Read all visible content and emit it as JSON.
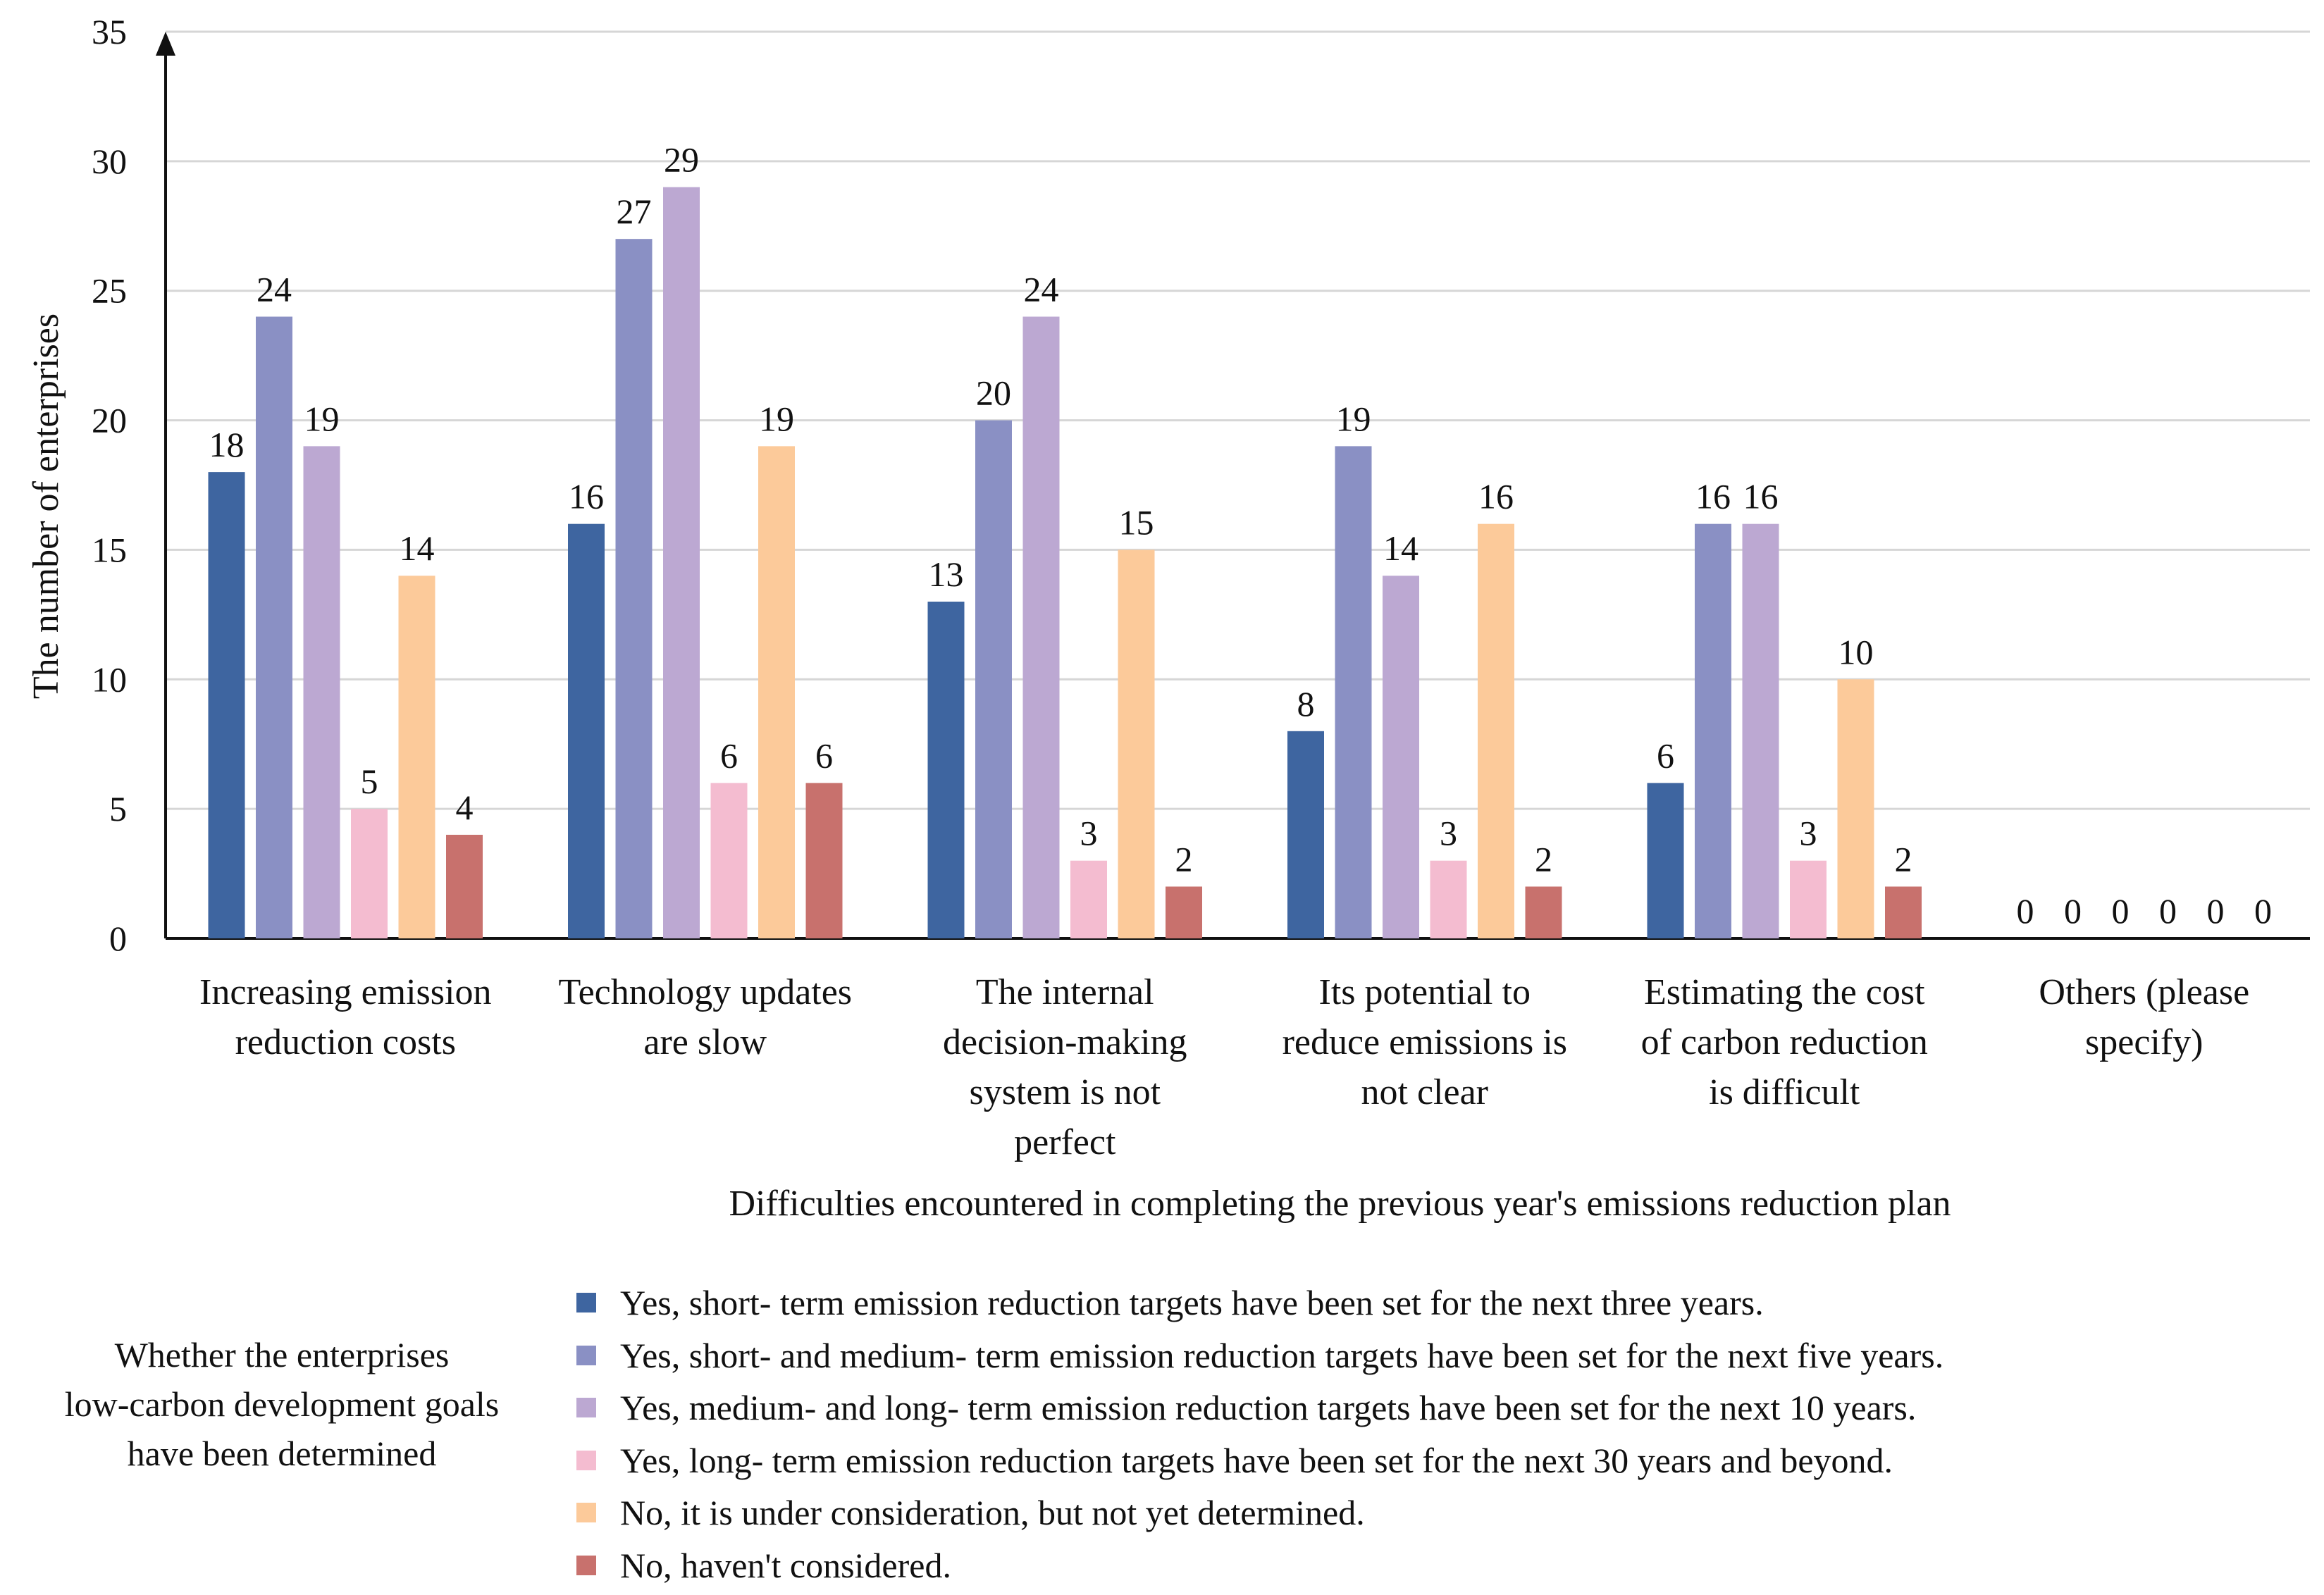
{
  "chart_data": {
    "type": "bar",
    "title": "",
    "xlabel": "Difficulties encountered in completing the previous year's emissions reduction plan",
    "ylabel": "The number of enterprises",
    "ylim": [
      0,
      35
    ],
    "yticks": [
      0,
      5,
      10,
      15,
      20,
      25,
      30,
      35
    ],
    "grid": true,
    "categories": [
      [
        "Increasing emission",
        "reduction costs"
      ],
      [
        "Technology updates",
        "are slow"
      ],
      [
        "The internal",
        "decision-making",
        "system is not",
        "perfect"
      ],
      [
        "Its potential to",
        "reduce emissions is",
        "not clear"
      ],
      [
        "Estimating the cost",
        "of carbon reduction",
        "is difficult"
      ],
      [
        "Others (please",
        "specify)"
      ]
    ],
    "series": [
      {
        "name": "Yes, short- term emission reduction targets have been set for the next three years.",
        "color": "#3e65a0",
        "values": [
          18,
          16,
          13,
          8,
          6,
          0
        ]
      },
      {
        "name": "Yes, short- and medium- term emission reduction targets have been set for the next five years.",
        "color": "#8a90c4",
        "values": [
          24,
          27,
          20,
          19,
          16,
          0
        ]
      },
      {
        "name": "Yes, medium- and long- term emission reduction targets have been set for the next 10 years.",
        "color": "#bca8d2",
        "values": [
          19,
          29,
          24,
          14,
          16,
          0
        ]
      },
      {
        "name": "Yes, long- term emission reduction targets have been set for the next 30 years and beyond.",
        "color": "#f4bcd0",
        "values": [
          5,
          6,
          3,
          3,
          3,
          0
        ]
      },
      {
        "name": "No, it is under consideration, but not yet determined.",
        "color": "#fcca9a",
        "values": [
          14,
          19,
          15,
          16,
          10,
          0
        ]
      },
      {
        "name": "No, haven't considered.",
        "color": "#c8716d",
        "values": [
          4,
          6,
          2,
          2,
          2,
          0
        ]
      }
    ],
    "legend_title": [
      "Whether the enterprises",
      "low-carbon development goals",
      "have been determined"
    ],
    "legend_position": "bottom"
  }
}
